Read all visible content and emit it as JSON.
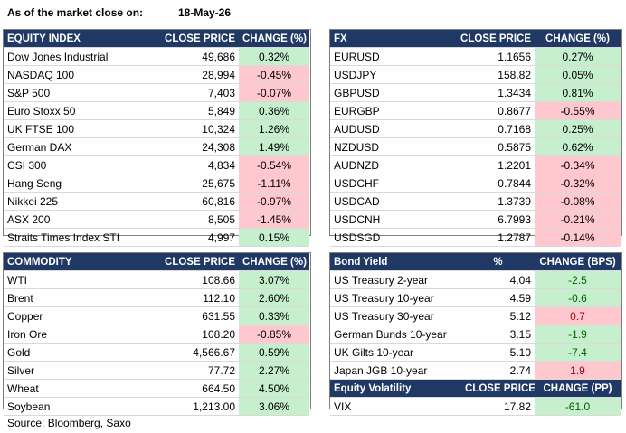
{
  "header": {
    "as_of_label": "As of the market close on:",
    "date": "18-May-26"
  },
  "equity": {
    "columns": [
      "EQUITY INDEX",
      "CLOSE PRICE",
      "CHANGE (%)"
    ],
    "rows": [
      {
        "name": "Dow Jones Industrial",
        "price": "49,686",
        "change": "0.32%",
        "dir": "up"
      },
      {
        "name": "NASDAQ 100",
        "price": "28,994",
        "change": "-0.45%",
        "dir": "down"
      },
      {
        "name": "S&P 500",
        "price": "7,403",
        "change": "-0.07%",
        "dir": "down"
      },
      {
        "name": "Euro Stoxx 50",
        "price": "5,849",
        "change": "0.36%",
        "dir": "up"
      },
      {
        "name": "UK FTSE 100",
        "price": "10,324",
        "change": "1.26%",
        "dir": "up"
      },
      {
        "name": "German DAX",
        "price": "24,308",
        "change": "1.49%",
        "dir": "up"
      },
      {
        "name": "CSI 300",
        "price": "4,834",
        "change": "-0.54%",
        "dir": "down"
      },
      {
        "name": "Hang Seng",
        "price": "25,675",
        "change": "-1.11%",
        "dir": "down"
      },
      {
        "name": "Nikkei 225",
        "price": "60,816",
        "change": "-0.97%",
        "dir": "down"
      },
      {
        "name": "ASX 200",
        "price": "8,505",
        "change": "-1.45%",
        "dir": "down"
      },
      {
        "name": "Straits Times Index STI",
        "price": "4,997",
        "change": "0.15%",
        "dir": "up"
      }
    ]
  },
  "fx": {
    "columns": [
      "FX",
      "CLOSE PRICE",
      "CHANGE (%)"
    ],
    "rows": [
      {
        "name": "EURUSD",
        "price": "1.1656",
        "change": "0.27%",
        "dir": "up"
      },
      {
        "name": "USDJPY",
        "price": "158.82",
        "change": "0.05%",
        "dir": "up"
      },
      {
        "name": "GBPUSD",
        "price": "1.3434",
        "change": "0.81%",
        "dir": "up"
      },
      {
        "name": "EURGBP",
        "price": "0.8677",
        "change": "-0.55%",
        "dir": "down"
      },
      {
        "name": "AUDUSD",
        "price": "0.7168",
        "change": "0.25%",
        "dir": "up"
      },
      {
        "name": "NZDUSD",
        "price": "0.5875",
        "change": "0.62%",
        "dir": "up"
      },
      {
        "name": "AUDNZD",
        "price": "1.2201",
        "change": "-0.34%",
        "dir": "down"
      },
      {
        "name": "USDCHF",
        "price": "0.7844",
        "change": "-0.32%",
        "dir": "down"
      },
      {
        "name": "USDCAD",
        "price": "1.3739",
        "change": "-0.08%",
        "dir": "down"
      },
      {
        "name": "USDCNH",
        "price": "6.7993",
        "change": "-0.21%",
        "dir": "down"
      },
      {
        "name": "USDSGD",
        "price": "1.2787",
        "change": "-0.14%",
        "dir": "down"
      }
    ]
  },
  "commodity": {
    "columns": [
      "COMMODITY",
      "CLOSE PRICE",
      "CHANGE (%)"
    ],
    "rows": [
      {
        "name": "WTI",
        "price": "108.66",
        "change": "3.07%",
        "dir": "up"
      },
      {
        "name": "Brent",
        "price": "112.10",
        "change": "2.60%",
        "dir": "up"
      },
      {
        "name": "Copper",
        "price": "631.55",
        "change": "0.33%",
        "dir": "up"
      },
      {
        "name": "Iron Ore",
        "price": "108.20",
        "change": "-0.85%",
        "dir": "down"
      },
      {
        "name": "Gold",
        "price": "4,566.67",
        "change": "0.59%",
        "dir": "up"
      },
      {
        "name": "Silver",
        "price": "77.72",
        "change": "2.27%",
        "dir": "up"
      },
      {
        "name": "Wheat",
        "price": "664.50",
        "change": "4.50%",
        "dir": "up"
      },
      {
        "name": "Soybean",
        "price": "1,213.00",
        "change": "3.06%",
        "dir": "up"
      }
    ]
  },
  "bond": {
    "columns": [
      "Bond Yield",
      "%",
      "CHANGE (BPS)"
    ],
    "rows": [
      {
        "name": "US Treasury 2-year",
        "price": "4.04",
        "change": "-2.5",
        "dir": "up"
      },
      {
        "name": "US Treasury 10-year",
        "price": "4.59",
        "change": "-0.6",
        "dir": "up"
      },
      {
        "name": "US Treasury 30-year",
        "price": "5.12",
        "change": "0.7",
        "dir": "down"
      },
      {
        "name": "German Bunds 10-year",
        "price": "3.15",
        "change": "-1.9",
        "dir": "up"
      },
      {
        "name": "UK Gilts 10-year",
        "price": "5.10",
        "change": "-7.4",
        "dir": "up"
      },
      {
        "name": "Japan JGB 10-year",
        "price": "2.74",
        "change": "1.9",
        "dir": "down"
      }
    ]
  },
  "volatility": {
    "columns": [
      "Equity Volatility",
      "CLOSE PRICE",
      "CHANGE (PP)"
    ],
    "rows": [
      {
        "name": "VIX",
        "price": "17.82",
        "change": "-61.0",
        "dir": "up"
      }
    ]
  },
  "footer": {
    "source": "Source: Bloomberg, Saxo"
  },
  "colors": {
    "header_bg": "#1f3864",
    "positive": "#c6efce",
    "negative": "#ffc7ce"
  }
}
